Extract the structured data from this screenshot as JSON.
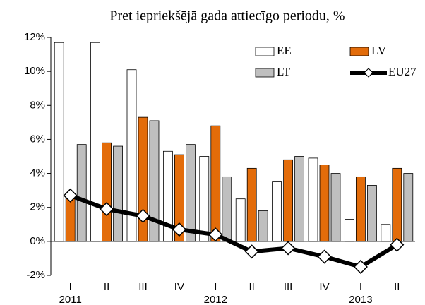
{
  "chart_data": {
    "type": "bar_line",
    "title": "Pret iepriekšējā gada attiecīgo periodu, %",
    "categories": [
      "I",
      "II",
      "III",
      "IV",
      "I",
      "II",
      "III",
      "IV",
      "I",
      "II"
    ],
    "years": [
      "2011",
      null,
      null,
      null,
      "2012",
      null,
      null,
      null,
      "2013",
      null
    ],
    "series": [
      {
        "name": "EE",
        "type": "bar",
        "color": "#ffffff",
        "values": [
          11.7,
          11.7,
          10.1,
          5.3,
          5.0,
          2.5,
          3.5,
          4.9,
          1.3,
          1.0
        ]
      },
      {
        "name": "LV",
        "type": "bar",
        "color": "#e36c0a",
        "values": [
          2.5,
          5.8,
          7.3,
          5.1,
          6.8,
          4.3,
          4.8,
          4.5,
          3.8,
          4.3
        ]
      },
      {
        "name": "LT",
        "type": "bar",
        "color": "#bfbfbf",
        "values": [
          5.7,
          5.6,
          7.1,
          5.7,
          3.8,
          1.8,
          5.0,
          4.0,
          3.3,
          4.0
        ]
      },
      {
        "name": "EU27",
        "type": "line",
        "color": "#000000",
        "values": [
          2.7,
          1.9,
          1.5,
          0.7,
          0.4,
          -0.6,
          -0.4,
          -0.9,
          -1.5,
          -0.2
        ]
      }
    ],
    "ylim": [
      -2,
      12
    ],
    "yticks": [
      {
        "value": -2,
        "label": "-2%"
      },
      {
        "value": 0,
        "label": "0%"
      },
      {
        "value": 2,
        "label": "2%"
      },
      {
        "value": 4,
        "label": "4%"
      },
      {
        "value": 6,
        "label": "6%"
      },
      {
        "value": 8,
        "label": "8%"
      },
      {
        "value": 10,
        "label": "10%"
      },
      {
        "value": 12,
        "label": "12%"
      }
    ],
    "legend": "top-right"
  }
}
